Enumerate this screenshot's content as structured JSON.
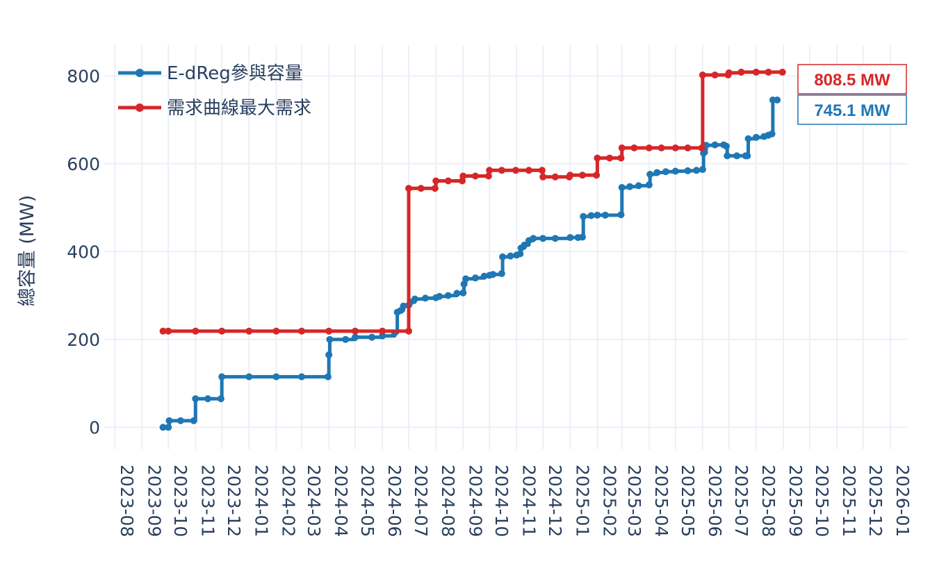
{
  "chart_data": {
    "type": "line",
    "title": "",
    "xlabel": "",
    "ylabel": "總容量 (MW)",
    "x_range": [
      "2023-07-20",
      "2026-01-20"
    ],
    "ylim": [
      -50,
      870
    ],
    "y_ticks": [
      0,
      200,
      400,
      600,
      800
    ],
    "x_ticks": [
      "2023-08",
      "2023-09",
      "2023-10",
      "2023-11",
      "2023-12",
      "2024-01",
      "2024-02",
      "2024-03",
      "2024-04",
      "2024-05",
      "2024-06",
      "2024-07",
      "2024-08",
      "2024-09",
      "2024-10",
      "2024-11",
      "2024-12",
      "2025-01",
      "2025-02",
      "2025-03",
      "2025-04",
      "2025-05",
      "2025-06",
      "2025-07",
      "2025-08",
      "2025-09",
      "2025-10",
      "2025-11",
      "2025-12",
      "2026-01"
    ],
    "grid": true,
    "legend_position": "top-left",
    "series": [
      {
        "name": "E-dReg參與容量",
        "color": "#1f77b4",
        "line_shape": "step",
        "points": [
          [
            "2023-09-25",
            0
          ],
          [
            "2023-10-01",
            0
          ],
          [
            "2023-10-02",
            15
          ],
          [
            "2023-10-15",
            15
          ],
          [
            "2023-10-30",
            15
          ],
          [
            "2023-11-01",
            65
          ],
          [
            "2023-11-15",
            65
          ],
          [
            "2023-11-30",
            65
          ],
          [
            "2023-12-01",
            115
          ],
          [
            "2024-01-01",
            115
          ],
          [
            "2024-02-01",
            115
          ],
          [
            "2024-03-01",
            115
          ],
          [
            "2024-03-31",
            115
          ],
          [
            "2024-04-01",
            165
          ],
          [
            "2024-04-02",
            200
          ],
          [
            "2024-04-20",
            200
          ],
          [
            "2024-05-01",
            205
          ],
          [
            "2024-05-20",
            205
          ],
          [
            "2024-06-01",
            208
          ],
          [
            "2024-06-15",
            215
          ],
          [
            "2024-06-18",
            262
          ],
          [
            "2024-06-22",
            266
          ],
          [
            "2024-06-25",
            276
          ],
          [
            "2024-07-01",
            278
          ],
          [
            "2024-07-03",
            285
          ],
          [
            "2024-07-08",
            292
          ],
          [
            "2024-07-20",
            294
          ],
          [
            "2024-08-01",
            295
          ],
          [
            "2024-08-05",
            298
          ],
          [
            "2024-08-15",
            300
          ],
          [
            "2024-08-25",
            305
          ],
          [
            "2024-09-01",
            306
          ],
          [
            "2024-09-02",
            326
          ],
          [
            "2024-09-04",
            338
          ],
          [
            "2024-09-15",
            340
          ],
          [
            "2024-09-25",
            344
          ],
          [
            "2024-10-01",
            346
          ],
          [
            "2024-10-05",
            348
          ],
          [
            "2024-10-15",
            350
          ],
          [
            "2024-10-16",
            388
          ],
          [
            "2024-10-25",
            390
          ],
          [
            "2024-11-01",
            392
          ],
          [
            "2024-11-05",
            395
          ],
          [
            "2024-11-06",
            408
          ],
          [
            "2024-11-10",
            415
          ],
          [
            "2024-11-15",
            425
          ],
          [
            "2024-11-20",
            430
          ],
          [
            "2024-12-01",
            430
          ],
          [
            "2024-12-15",
            430
          ],
          [
            "2025-01-01",
            432
          ],
          [
            "2025-01-10",
            432
          ],
          [
            "2025-01-15",
            433
          ],
          [
            "2025-01-16",
            480
          ],
          [
            "2025-01-25",
            482
          ],
          [
            "2025-02-01",
            483
          ],
          [
            "2025-02-10",
            483
          ],
          [
            "2025-02-28",
            484
          ],
          [
            "2025-03-01",
            546
          ],
          [
            "2025-03-10",
            548
          ],
          [
            "2025-03-20",
            550
          ],
          [
            "2025-04-01",
            552
          ],
          [
            "2025-04-02",
            576
          ],
          [
            "2025-04-10",
            580
          ],
          [
            "2025-04-20",
            582
          ],
          [
            "2025-05-01",
            583
          ],
          [
            "2025-05-15",
            584
          ],
          [
            "2025-05-25",
            585
          ],
          [
            "2025-06-01",
            587
          ],
          [
            "2025-06-02",
            624
          ],
          [
            "2025-06-05",
            642
          ],
          [
            "2025-06-15",
            643
          ],
          [
            "2025-06-25",
            643
          ],
          [
            "2025-06-28",
            640
          ],
          [
            "2025-06-29",
            618
          ],
          [
            "2025-07-10",
            618
          ],
          [
            "2025-07-20",
            618
          ],
          [
            "2025-07-22",
            618
          ],
          [
            "2025-07-23",
            657
          ],
          [
            "2025-08-01",
            660
          ],
          [
            "2025-08-10",
            662
          ],
          [
            "2025-08-15",
            665
          ],
          [
            "2025-08-19",
            668
          ],
          [
            "2025-08-20",
            745.1
          ],
          [
            "2025-08-25",
            745.1
          ]
        ]
      },
      {
        "name": "需求曲線最大需求",
        "color": "#d62728",
        "line_shape": "step",
        "points": [
          [
            "2023-09-25",
            219
          ],
          [
            "2023-10-01",
            219
          ],
          [
            "2023-11-01",
            219
          ],
          [
            "2023-12-01",
            219
          ],
          [
            "2024-01-01",
            219
          ],
          [
            "2024-02-01",
            219
          ],
          [
            "2024-03-01",
            219
          ],
          [
            "2024-04-01",
            219
          ],
          [
            "2024-05-01",
            219
          ],
          [
            "2024-06-01",
            219
          ],
          [
            "2024-07-01",
            219
          ],
          [
            "2024-07-01",
            544
          ],
          [
            "2024-07-15",
            544
          ],
          [
            "2024-07-31",
            544
          ],
          [
            "2024-08-01",
            561
          ],
          [
            "2024-08-15",
            561
          ],
          [
            "2024-08-31",
            561
          ],
          [
            "2024-09-01",
            572
          ],
          [
            "2024-09-15",
            572
          ],
          [
            "2024-09-30",
            572
          ],
          [
            "2024-10-01",
            585
          ],
          [
            "2024-10-15",
            585
          ],
          [
            "2024-10-31",
            585
          ],
          [
            "2024-11-15",
            585
          ],
          [
            "2024-11-30",
            585
          ],
          [
            "2024-12-01",
            570
          ],
          [
            "2024-12-15",
            570
          ],
          [
            "2024-12-31",
            570
          ],
          [
            "2025-01-01",
            574
          ],
          [
            "2025-01-15",
            574
          ],
          [
            "2025-01-31",
            574
          ],
          [
            "2025-02-01",
            613
          ],
          [
            "2025-02-15",
            613
          ],
          [
            "2025-02-28",
            613
          ],
          [
            "2025-03-01",
            636
          ],
          [
            "2025-03-15",
            636
          ],
          [
            "2025-04-01",
            636
          ],
          [
            "2025-04-15",
            636
          ],
          [
            "2025-05-01",
            636
          ],
          [
            "2025-05-15",
            636
          ],
          [
            "2025-05-31",
            636
          ],
          [
            "2025-06-01",
            802
          ],
          [
            "2025-06-15",
            802
          ],
          [
            "2025-06-30",
            802
          ],
          [
            "2025-07-01",
            807
          ],
          [
            "2025-07-15",
            808.5
          ],
          [
            "2025-08-01",
            808.5
          ],
          [
            "2025-08-15",
            808.5
          ],
          [
            "2025-08-31",
            808.5
          ]
        ]
      }
    ],
    "annotations": [
      {
        "text": "808.5 MW",
        "color": "#d62728"
      },
      {
        "text": "745.1 MW",
        "color": "#1f77b4"
      }
    ]
  }
}
